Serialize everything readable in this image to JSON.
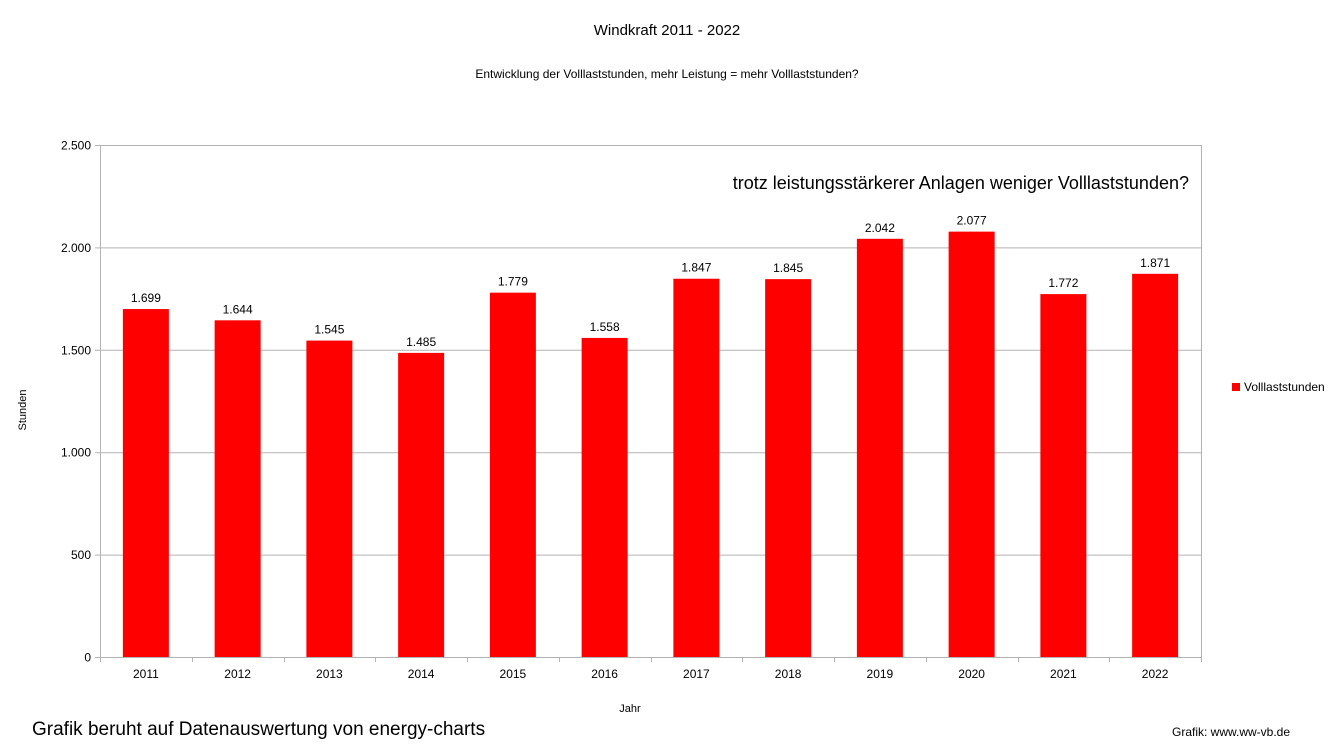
{
  "chart_data": {
    "type": "bar",
    "title": "Windkraft  2011 - 2022",
    "subtitle": "Entwicklung der Volllaststunden, mehr Leistung = mehr Volllaststunden?",
    "annotation": "trotz leistungsstärkerer Anlagen weniger Volllaststunden?",
    "xlabel": "Jahr",
    "ylabel": "Stunden",
    "categories": [
      "2011",
      "2012",
      "2013",
      "2014",
      "2015",
      "2016",
      "2017",
      "2018",
      "2019",
      "2020",
      "2021",
      "2022"
    ],
    "series": [
      {
        "name": "Volllaststunden",
        "color": "#ff0000",
        "values": [
          1699,
          1644,
          1545,
          1485,
          1779,
          1558,
          1847,
          1845,
          2042,
          2077,
          1772,
          1871
        ],
        "labels": [
          "1.699",
          "1.644",
          "1.545",
          "1.485",
          "1.779",
          "1.558",
          "1.847",
          "1.845",
          "2.042",
          "2.077",
          "1.772",
          "1.871"
        ]
      }
    ],
    "ylim": [
      0,
      2500
    ],
    "yticks": [
      0,
      500,
      1000,
      1500,
      2000,
      2500
    ],
    "ytick_labels": [
      "0",
      "500",
      "1.000",
      "1.500",
      "2.000",
      "2.500"
    ],
    "grid": true,
    "legend": "right"
  },
  "footer": {
    "source": "Grafik beruht auf Datenauswertung von energy-charts",
    "credit": "Grafik: www.ww-vb.de"
  }
}
